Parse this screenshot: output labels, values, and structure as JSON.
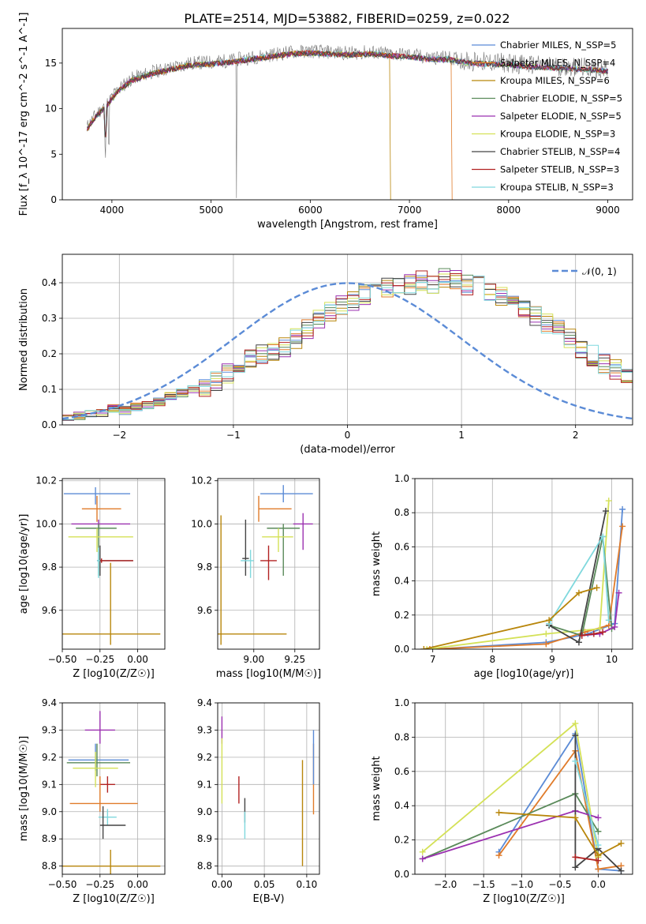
{
  "figure": {
    "title": "PLATE=2514, MJD=53882, FIBERID=0259, z=0.022"
  },
  "series_styles": [
    {
      "name": "Chabrier MILES, N$_{SSP}$=5",
      "color": "#5b8bd6"
    },
    {
      "name": "Salpeter MILES, N$_{SSP}$=4",
      "color": "#e07b2a"
    },
    {
      "name": "Kroupa MILES, N$_{SSP}$=6",
      "color": "#b8860b"
    },
    {
      "name": "Chabrier ELODIE, N$_{SSP}$=5",
      "color": "#5a8a5a"
    },
    {
      "name": "Salpeter ELODIE, N$_{SSP}$=5",
      "color": "#9b30b0"
    },
    {
      "name": "Kroupa ELODIE, N$_{SSP}$=3",
      "color": "#d4e157"
    },
    {
      "name": "Chabrier STELIB, N$_{SSP}$=4",
      "color": "#444444"
    },
    {
      "name": "Salpeter STELIB, N$_{SSP}$=3",
      "color": "#b22222"
    },
    {
      "name": "Kroupa STELIB, N$_{SSP}$=3",
      "color": "#7fd8dd"
    }
  ],
  "chart_data": [
    {
      "id": "spectrum",
      "type": "line",
      "title": "PLATE=2514, MJD=53882, FIBERID=0259, z=0.022",
      "xlabel": "wavelength [Angstrom, rest frame]",
      "ylabel": "Flux [f_λ 10^-17 erg cm^-2 s^-1 A^-1]",
      "xlim": [
        3500,
        9250
      ],
      "ylim": [
        0,
        18.8
      ],
      "xticks": [
        4000,
        5000,
        6000,
        7000,
        8000,
        9000
      ],
      "yticks": [
        0,
        5,
        10,
        15
      ],
      "grid": false,
      "legend_position": "top-right",
      "legend": [
        "Chabrier MILES, N_SSP=5",
        "Salpeter MILES, N_SSP=4",
        "Kroupa MILES, N_SSP=6",
        "Chabrier ELODIE, N_SSP=5",
        "Salpeter ELODIE, N_SSP=5",
        "Kroupa ELODIE, N_SSP=3",
        "Chabrier STELIB, N_SSP=4",
        "Salpeter STELIB, N_SSP=3",
        "Kroupa STELIB, N_SSP=3"
      ],
      "continuum": {
        "x": [
          3750,
          3850,
          3950,
          4050,
          4200,
          4400,
          4600,
          4800,
          5000,
          5200,
          5400,
          5600,
          5800,
          6000,
          6200,
          6400,
          6600,
          6800,
          7000,
          7200,
          7400,
          7600,
          7800,
          8000,
          8200,
          8400,
          8600,
          8800,
          9000
        ],
        "y": [
          8.0,
          9.5,
          10.5,
          12.0,
          13.3,
          14.0,
          14.5,
          15.0,
          15.1,
          15.3,
          15.6,
          15.9,
          16.2,
          16.3,
          16.2,
          16.1,
          16.2,
          16.0,
          15.9,
          15.6,
          15.6,
          15.2,
          15.1,
          15.0,
          14.8,
          14.7,
          14.6,
          14.5,
          14.3
        ]
      },
      "cutoffs": [
        {
          "series": "Kroupa MILES",
          "x": 6800
        },
        {
          "series": "Salpeter MILES",
          "x": 7420
        }
      ]
    },
    {
      "id": "residual_hist",
      "type": "histogram",
      "xlabel": "(data-model)/error",
      "ylabel": "Normed distribution",
      "xlim": [
        -2.5,
        2.5
      ],
      "ylim": [
        0,
        0.48
      ],
      "xticks": [
        -2,
        -1,
        0,
        1,
        2
      ],
      "yticks": [
        0.0,
        0.1,
        0.2,
        0.3,
        0.4
      ],
      "grid": true,
      "legend_position": "top-right",
      "legend": [
        "𝒩(0, 1)"
      ],
      "gaussian": {
        "mean": 0,
        "sigma": 1
      },
      "bin_width": 0.1,
      "bin_start": -2.5,
      "bin_values": [
        0.02,
        0.025,
        0.03,
        0.035,
        0.045,
        0.04,
        0.05,
        0.055,
        0.065,
        0.08,
        0.09,
        0.1,
        0.11,
        0.12,
        0.145,
        0.17,
        0.19,
        0.2,
        0.205,
        0.22,
        0.245,
        0.27,
        0.3,
        0.32,
        0.335,
        0.35,
        0.365,
        0.375,
        0.385,
        0.4,
        0.395,
        0.405,
        0.4,
        0.41,
        0.405,
        0.395,
        0.39,
        0.38,
        0.365,
        0.345,
        0.33,
        0.31,
        0.285,
        0.265,
        0.245,
        0.215,
        0.195,
        0.17,
        0.155,
        0.13
      ]
    },
    {
      "id": "age_vs_Z",
      "type": "errorbar",
      "xlabel": "Z [log10(Z/Z☉)]",
      "ylabel": "age  [log10(age/yr)]",
      "xlim": [
        -0.5,
        0.18
      ],
      "ylim": [
        9.42,
        10.21
      ],
      "xticks": [
        -0.5,
        -0.25,
        0.0
      ],
      "yticks": [
        9.6,
        9.8,
        10.0,
        10.2
      ],
      "grid": true,
      "points": [
        {
          "x": -0.28,
          "xerr": [
            0.21,
            0.23
          ],
          "y": 10.14,
          "yerr": [
            0.05,
            0.03
          ],
          "c": 0
        },
        {
          "x": -0.27,
          "xerr": [
            0.1,
            0.16
          ],
          "y": 10.07,
          "yerr": [
            0.06,
            0.06
          ],
          "c": 1
        },
        {
          "x": -0.26,
          "xerr": [
            0.18,
            0.21
          ],
          "y": 10.0,
          "yerr": [
            0.02,
            0.02
          ],
          "c": 4
        },
        {
          "x": -0.26,
          "xerr": [
            0.15,
            0.12
          ],
          "y": 9.98,
          "yerr": [
            0.22,
            0.02
          ],
          "c": 3
        },
        {
          "x": -0.27,
          "xerr": [
            0.19,
            0.24
          ],
          "y": 9.94,
          "yerr": [
            0.07,
            0.04
          ],
          "c": 5
        },
        {
          "x": -0.25,
          "xerr": [
            0.02,
            0.22
          ],
          "y": 9.83,
          "yerr": [
            0.07,
            0.07
          ],
          "c": 6
        },
        {
          "x": -0.24,
          "xerr": [
            0.01,
            0.21
          ],
          "y": 9.83,
          "yerr": [
            0.01,
            0.01
          ],
          "c": 7
        },
        {
          "x": -0.26,
          "xerr": [
            0.01,
            0.01
          ],
          "y": 9.83,
          "yerr": [
            0.08,
            0.06
          ],
          "c": 8
        },
        {
          "x": -0.18,
          "xerr": [
            0.32,
            0.33
          ],
          "y": 9.49,
          "yerr": [
            0.05,
            0.33
          ],
          "c": 2
        }
      ]
    },
    {
      "id": "age_vs_mass",
      "type": "errorbar",
      "xlabel": "mass [log10(M/M☉)]",
      "ylabel": "",
      "xlim": [
        8.78,
        9.4
      ],
      "ylim": [
        9.42,
        10.21
      ],
      "xticks": [
        9.0,
        9.25
      ],
      "yticks": [
        9.6,
        9.8,
        10.0,
        10.2
      ],
      "grid": true,
      "points": [
        {
          "x": 9.18,
          "xerr": [
            0.14,
            0.18
          ],
          "y": 10.14,
          "yerr": [
            0.04,
            0.04
          ],
          "c": 0
        },
        {
          "x": 9.03,
          "xerr": [
            0.0,
            0.2
          ],
          "y": 10.07,
          "yerr": [
            0.06,
            0.06
          ],
          "c": 1
        },
        {
          "x": 9.3,
          "xerr": [
            0.06,
            0.06
          ],
          "y": 10.0,
          "yerr": [
            0.12,
            0.05
          ],
          "c": 4
        },
        {
          "x": 9.18,
          "xerr": [
            0.1,
            0.1
          ],
          "y": 9.98,
          "yerr": [
            0.22,
            0.02
          ],
          "c": 3
        },
        {
          "x": 9.15,
          "xerr": [
            0.1,
            0.09
          ],
          "y": 9.94,
          "yerr": [
            0.07,
            0.04
          ],
          "c": 5
        },
        {
          "x": 8.95,
          "xerr": [
            0.02,
            0.02
          ],
          "y": 9.84,
          "yerr": [
            0.08,
            0.18
          ],
          "c": 6
        },
        {
          "x": 9.09,
          "xerr": [
            0.05,
            0.05
          ],
          "y": 9.83,
          "yerr": [
            0.09,
            0.07
          ],
          "c": 7
        },
        {
          "x": 8.98,
          "xerr": [
            0.06,
            0.02
          ],
          "y": 9.83,
          "yerr": [
            0.08,
            0.05
          ],
          "c": 8
        },
        {
          "x": 8.8,
          "xerr": [
            0.02,
            0.4
          ],
          "y": 9.49,
          "yerr": [
            0.05,
            0.55
          ],
          "c": 2
        }
      ]
    },
    {
      "id": "weights_vs_age",
      "type": "line",
      "xlabel": "age  [log10(age/yr)]",
      "ylabel": "mass weight",
      "xlim": [
        6.7,
        10.35
      ],
      "ylim": [
        0,
        1
      ],
      "xticks": [
        7,
        8,
        9,
        10
      ],
      "yticks": [
        0.0,
        0.2,
        0.4,
        0.6,
        0.8,
        1.0
      ],
      "grid": true,
      "series": [
        {
          "c": 0,
          "x": [
            7.0,
            8.9,
            9.6,
            10.05,
            10.18
          ],
          "y": [
            0.0,
            0.04,
            0.09,
            0.15,
            0.82
          ]
        },
        {
          "c": 1,
          "x": [
            6.95,
            8.9,
            9.55,
            9.95,
            10.18
          ],
          "y": [
            0.0,
            0.03,
            0.1,
            0.14,
            0.72
          ]
        },
        {
          "c": 5,
          "x": [
            6.9,
            8.9,
            9.8,
            9.95
          ],
          "y": [
            0.0,
            0.09,
            0.12,
            0.87
          ]
        },
        {
          "c": 3,
          "x": [
            8.95,
            9.5,
            9.85,
            10.0
          ],
          "y": [
            0.14,
            0.08,
            0.66,
            0.12
          ]
        },
        {
          "c": 4,
          "x": [
            9.5,
            9.8,
            10.05,
            10.12
          ],
          "y": [
            0.08,
            0.09,
            0.13,
            0.33
          ]
        },
        {
          "c": 6,
          "x": [
            8.95,
            9.45,
            9.9
          ],
          "y": [
            0.14,
            0.04,
            0.81
          ]
        },
        {
          "c": 8,
          "x": [
            8.95,
            9.85,
            9.95
          ],
          "y": [
            0.15,
            0.66,
            0.17
          ]
        },
        {
          "c": 2,
          "x": [
            6.85,
            8.95,
            9.45,
            9.75
          ],
          "y": [
            0.0,
            0.17,
            0.33,
            0.36
          ]
        },
        {
          "c": 7,
          "x": [
            9.5,
            9.7,
            9.85
          ],
          "y": [
            0.08,
            0.09,
            0.1
          ]
        }
      ]
    },
    {
      "id": "mass_vs_Z",
      "type": "errorbar",
      "xlabel": "Z [log10(Z/Z☉)]",
      "ylabel": "mass [log10(M/M☉)]",
      "xlim": [
        -0.5,
        0.18
      ],
      "ylim": [
        8.77,
        9.4
      ],
      "xticks": [
        -0.5,
        -0.25,
        0.0
      ],
      "yticks": [
        8.8,
        8.9,
        9.0,
        9.1,
        9.2,
        9.3,
        9.4
      ],
      "grid": true,
      "points": [
        {
          "x": -0.25,
          "xerr": [
            0.1,
            0.1
          ],
          "y": 9.3,
          "yerr": [
            0.05,
            0.07
          ],
          "c": 4
        },
        {
          "x": -0.28,
          "xerr": [
            0.18,
            0.22
          ],
          "y": 9.19,
          "yerr": [
            0.04,
            0.06
          ],
          "c": 0
        },
        {
          "x": -0.27,
          "xerr": [
            0.2,
            0.22
          ],
          "y": 9.18,
          "yerr": [
            0.05,
            0.07
          ],
          "c": 3
        },
        {
          "x": -0.28,
          "xerr": [
            0.15,
            0.15
          ],
          "y": 9.16,
          "yerr": [
            0.07,
            0.06
          ],
          "c": 5
        },
        {
          "x": -0.2,
          "xerr": [
            0.05,
            0.05
          ],
          "y": 9.1,
          "yerr": [
            0.03,
            0.03
          ],
          "c": 7
        },
        {
          "x": -0.25,
          "xerr": [
            0.2,
            0.25
          ],
          "y": 9.03,
          "yerr": [
            0.03,
            0.1
          ],
          "c": 1
        },
        {
          "x": -0.2,
          "xerr": [
            0.06,
            0.06
          ],
          "y": 8.98,
          "yerr": [
            0.03,
            0.03
          ],
          "c": 8
        },
        {
          "x": -0.23,
          "xerr": [
            0.02,
            0.15
          ],
          "y": 8.95,
          "yerr": [
            0.05,
            0.07
          ],
          "c": 6
        },
        {
          "x": -0.18,
          "xerr": [
            0.32,
            0.33
          ],
          "y": 8.8,
          "yerr": [
            0.03,
            0.06
          ],
          "c": 2
        }
      ]
    },
    {
      "id": "mass_vs_EBV",
      "type": "errorbar",
      "xlabel": "E(B-V)",
      "ylabel": "",
      "xlim": [
        -0.005,
        0.115
      ],
      "ylim": [
        8.77,
        9.4
      ],
      "xticks": [
        0.0,
        0.05,
        0.1
      ],
      "yticks": [
        8.8,
        8.9,
        9.0,
        9.1,
        9.2,
        9.3,
        9.4
      ],
      "grid": true,
      "points": [
        {
          "x": 0.0,
          "xerr": [
            0.0,
            0.0
          ],
          "y": 9.3,
          "yerr": [
            0.05,
            0.05
          ],
          "c": 4
        },
        {
          "x": 0.0,
          "xerr": [
            0.0,
            0.0
          ],
          "y": 9.12,
          "yerr": [
            0.09,
            0.15
          ],
          "c": 5
        },
        {
          "x": 0.02,
          "xerr": [
            0.0,
            0.0
          ],
          "y": 9.08,
          "yerr": [
            0.05,
            0.05
          ],
          "c": 7
        },
        {
          "x": 0.027,
          "xerr": [
            0.0,
            0.0
          ],
          "y": 9.0,
          "yerr": [
            0.04,
            0.05
          ],
          "c": 6
        },
        {
          "x": 0.027,
          "xerr": [
            0.0,
            0.0
          ],
          "y": 8.97,
          "yerr": [
            0.07,
            0.03
          ],
          "c": 8
        },
        {
          "x": 0.095,
          "xerr": [
            0.0,
            0.0
          ],
          "y": 8.98,
          "yerr": [
            0.18,
            0.21
          ],
          "c": 2
        },
        {
          "x": 0.108,
          "xerr": [
            0.0,
            0.0
          ],
          "y": 9.12,
          "yerr": [
            0.13,
            0.13
          ],
          "c": 1
        },
        {
          "x": 0.108,
          "xerr": [
            0.0,
            0.0
          ],
          "y": 9.2,
          "yerr": [
            0.1,
            0.1
          ],
          "c": 0
        }
      ]
    },
    {
      "id": "weights_vs_Z",
      "type": "line",
      "xlabel": "Z [log10(Z/Z☉)]",
      "ylabel": "mass weight",
      "xlim": [
        -2.4,
        0.45
      ],
      "ylim": [
        0,
        1
      ],
      "xticks": [
        -2.0,
        -1.5,
        -1.0,
        -0.5,
        0.0
      ],
      "yticks": [
        0.0,
        0.2,
        0.4,
        0.6,
        0.8,
        1.0
      ],
      "grid": true,
      "series": [
        {
          "c": 0,
          "x": [
            -1.3,
            -0.3,
            0.0,
            0.3
          ],
          "y": [
            0.13,
            0.82,
            0.03,
            0.02
          ]
        },
        {
          "c": 1,
          "x": [
            -1.3,
            -0.3,
            0.0,
            0.3
          ],
          "y": [
            0.11,
            0.72,
            0.03,
            0.05
          ]
        },
        {
          "c": 5,
          "x": [
            -2.3,
            -0.3,
            0.0
          ],
          "y": [
            0.13,
            0.88,
            0.1
          ]
        },
        {
          "c": 3,
          "x": [
            -2.3,
            -0.3,
            0.0
          ],
          "y": [
            0.09,
            0.47,
            0.25
          ]
        },
        {
          "c": 4,
          "x": [
            -2.3,
            -0.3,
            0.0
          ],
          "y": [
            0.09,
            0.37,
            0.33
          ]
        },
        {
          "c": 6,
          "x": [
            -0.3,
            -0.3,
            0.0,
            0.3
          ],
          "y": [
            0.81,
            0.04,
            0.15,
            0.02
          ]
        },
        {
          "c": 8,
          "x": [
            -0.3,
            0.0
          ],
          "y": [
            0.66,
            0.17
          ]
        },
        {
          "c": 2,
          "x": [
            -1.3,
            -0.3,
            0.0,
            0.3
          ],
          "y": [
            0.36,
            0.33,
            0.11,
            0.18
          ]
        },
        {
          "c": 7,
          "x": [
            -0.3,
            0.0
          ],
          "y": [
            0.1,
            0.08
          ]
        }
      ]
    }
  ]
}
